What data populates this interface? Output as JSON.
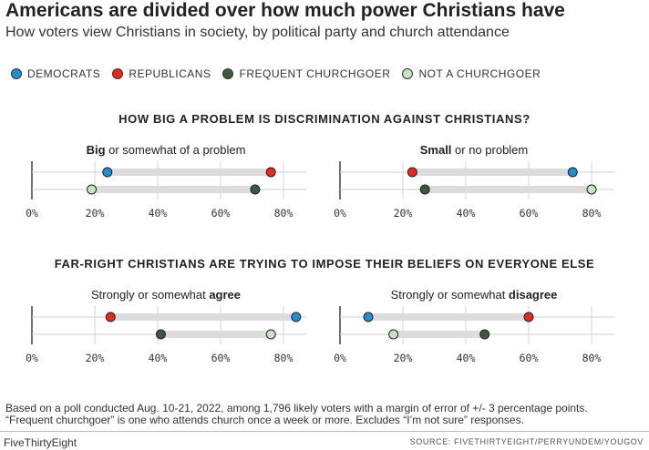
{
  "title": "Americans are divided over how much power Christians have",
  "subtitle": "How voters view Christians in society, by political party and church attendance",
  "legend": [
    {
      "label": "DEMOCRATS",
      "color": "#1f8fd6"
    },
    {
      "label": "REPUBLICANS",
      "color": "#e8291c"
    },
    {
      "label": "FREQUENT CHURCHGOER",
      "color": "#3e5a3c"
    },
    {
      "label": "NOT A CHURCHGOER",
      "color": "#c6e4c2"
    }
  ],
  "chart_data": [
    {
      "type": "dot",
      "section_title": "HOW BIG A PROBLEM IS DISCRIMINATION AGAINST CHRISTIANS?",
      "panel_title_bold": "Big",
      "panel_title_rest": " or somewhat of a problem",
      "xlim": [
        0,
        85
      ],
      "ticks": [
        "0%",
        "20%",
        "40%",
        "60%",
        "80%"
      ],
      "tick_values": [
        0,
        20,
        40,
        60,
        80
      ],
      "rows": [
        {
          "points": [
            {
              "series": "DEMOCRATS",
              "value": 24
            },
            {
              "series": "REPUBLICANS",
              "value": 76
            }
          ]
        },
        {
          "points": [
            {
              "series": "NOT A CHURCHGOER",
              "value": 19
            },
            {
              "series": "FREQUENT CHURCHGOER",
              "value": 71
            }
          ]
        }
      ]
    },
    {
      "type": "dot",
      "panel_title_bold": "Small",
      "panel_title_rest": " or no problem",
      "xlim": [
        0,
        85
      ],
      "ticks": [
        "0%",
        "20%",
        "40%",
        "60%",
        "80%"
      ],
      "tick_values": [
        0,
        20,
        40,
        60,
        80
      ],
      "rows": [
        {
          "points": [
            {
              "series": "REPUBLICANS",
              "value": 23
            },
            {
              "series": "DEMOCRATS",
              "value": 74
            }
          ]
        },
        {
          "points": [
            {
              "series": "FREQUENT CHURCHGOER",
              "value": 27
            },
            {
              "series": "NOT A CHURCHGOER",
              "value": 80
            }
          ]
        }
      ]
    },
    {
      "type": "dot",
      "section_title": "FAR-RIGHT CHRISTIANS ARE TRYING TO IMPOSE THEIR BELIEFS ON EVERYONE ELSE",
      "panel_title_rest": "Strongly or somewhat ",
      "panel_title_bold": "agree",
      "xlim": [
        0,
        85
      ],
      "ticks": [
        "0%",
        "20%",
        "40%",
        "60%",
        "80%"
      ],
      "tick_values": [
        0,
        20,
        40,
        60,
        80
      ],
      "rows": [
        {
          "points": [
            {
              "series": "REPUBLICANS",
              "value": 25
            },
            {
              "series": "DEMOCRATS",
              "value": 84
            }
          ]
        },
        {
          "points": [
            {
              "series": "FREQUENT CHURCHGOER",
              "value": 41
            },
            {
              "series": "NOT A CHURCHGOER",
              "value": 76
            }
          ]
        }
      ]
    },
    {
      "type": "dot",
      "panel_title_rest": "Strongly or somewhat ",
      "panel_title_bold": "disagree",
      "xlim": [
        0,
        85
      ],
      "ticks": [
        "0%",
        "20%",
        "40%",
        "60%",
        "80%"
      ],
      "tick_values": [
        0,
        20,
        40,
        60,
        80
      ],
      "rows": [
        {
          "points": [
            {
              "series": "DEMOCRATS",
              "value": 9
            },
            {
              "series": "REPUBLICANS",
              "value": 60
            }
          ]
        },
        {
          "points": [
            {
              "series": "NOT A CHURCHGOER",
              "value": 17
            },
            {
              "series": "FREQUENT CHURCHGOER",
              "value": 46
            }
          ]
        }
      ]
    }
  ],
  "footnote_line1": "Based on a poll conducted Aug. 10-21, 2022, among 1,796 likely voters with a margin of error of +/- 3 percentage points.",
  "footnote_line2": "“Frequent churchgoer” is one who attends church once a week or more.  Excludes “I’m not sure” responses.",
  "brand": "FiveThirtyEight",
  "source": "SOURCE: FIVETHIRTYEIGHT/PERRYUNDEM/YOUGOV"
}
